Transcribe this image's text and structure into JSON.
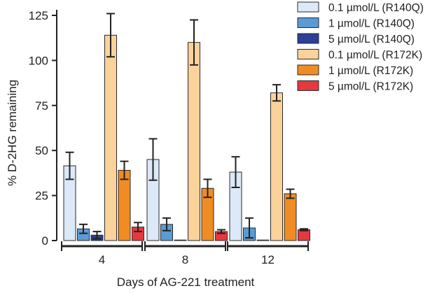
{
  "chart_data": {
    "type": "bar",
    "title": "",
    "xlabel": "Days of AG-221 treatment",
    "ylabel": "% D-2HG remaining",
    "ylim": [
      0,
      125
    ],
    "yticks": [
      0,
      25,
      50,
      75,
      100,
      125
    ],
    "categories": [
      "4",
      "8",
      "12"
    ],
    "legend_position": "top-right",
    "series": [
      {
        "name": "0.1 µmol/L (R140Q)",
        "color": "#dbe9f8",
        "values": [
          41.5,
          45,
          38
        ],
        "errors": [
          7.5,
          11.5,
          8.5
        ]
      },
      {
        "name": "1 µmol/L (R140Q)",
        "color": "#5b9bd5",
        "values": [
          6.5,
          9,
          7
        ],
        "errors": [
          2.5,
          3.5,
          5.5
        ]
      },
      {
        "name": "5 µmol/L (R140Q)",
        "color": "#2c3f99",
        "values": [
          3,
          0.3,
          0.3
        ],
        "errors": [
          2,
          0,
          0
        ]
      },
      {
        "name": "0.1 µmol/L (R172K)",
        "color": "#fbd29a",
        "values": [
          114,
          110,
          82
        ],
        "errors": [
          12,
          12.5,
          4.5
        ]
      },
      {
        "name": "1 µmol/L (R172K)",
        "color": "#f08c24",
        "values": [
          39,
          29,
          26
        ],
        "errors": [
          5,
          5,
          2.5
        ]
      },
      {
        "name": "5 µmol/L (R172K)",
        "color": "#e8383d",
        "values": [
          7.5,
          5,
          6
        ],
        "errors": [
          2.5,
          1,
          0.5
        ]
      }
    ]
  }
}
